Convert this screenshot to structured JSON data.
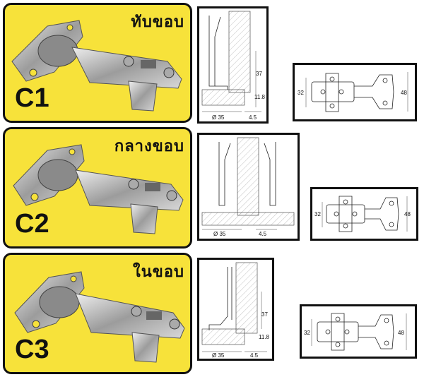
{
  "hinges": [
    {
      "thai_label": "ทับขอบ",
      "code": "C1",
      "side_dims": {
        "height": "37",
        "cup_gap": "11.8",
        "cup_dia": "Ø 35",
        "offset": "4.5"
      },
      "plate_dims": {
        "width": "32",
        "height": "48"
      }
    },
    {
      "thai_label": "กลางขอบ",
      "code": "C2",
      "side_dims": {
        "cup_dia": "Ø 35",
        "offset": "4.5"
      },
      "plate_dims": {
        "width": "32",
        "height": "48"
      }
    },
    {
      "thai_label": "ในขอบ",
      "code": "C3",
      "side_dims": {
        "height": "37",
        "cup_gap": "11.8",
        "cup_dia": "Ø 35",
        "offset": "4.5"
      },
      "plate_dims": {
        "width": "32",
        "height": "48"
      }
    }
  ],
  "colors": {
    "card_bg": "#f7e23a",
    "border": "#111111",
    "metal": "#b8b8b8"
  }
}
